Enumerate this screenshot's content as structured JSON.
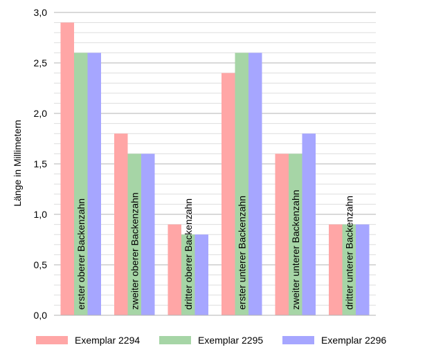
{
  "chart_data": {
    "type": "bar",
    "title": "",
    "xlabel": "",
    "ylabel": "Länge in Millimetern",
    "ylim": [
      0,
      3.0
    ],
    "y_ticks": [
      "0,0",
      "0,5",
      "1,0",
      "1,5",
      "2,0",
      "2,5",
      "3,0"
    ],
    "grid": true,
    "legend_position": "bottom",
    "categories": [
      "erster oberer Backenzahn",
      "zweiter oberer Backenzahn",
      "dritter oberer Backenzahn",
      "erster unterer Backenzahn",
      "zweiter unterer Backenzahn",
      "dritter unterer Backenzahn"
    ],
    "series": [
      {
        "name": "Exemplar 2294",
        "color": "#ffa6a6",
        "values": [
          2.9,
          1.8,
          0.9,
          2.4,
          1.6,
          0.9
        ]
      },
      {
        "name": "Exemplar 2295",
        "color": "#a6d5a6",
        "values": [
          2.6,
          1.6,
          0.8,
          2.6,
          1.6,
          0.9
        ]
      },
      {
        "name": "Exemplar 2296",
        "color": "#a6a6ff",
        "values": [
          2.6,
          1.6,
          0.8,
          2.6,
          1.8,
          0.9
        ]
      }
    ]
  }
}
